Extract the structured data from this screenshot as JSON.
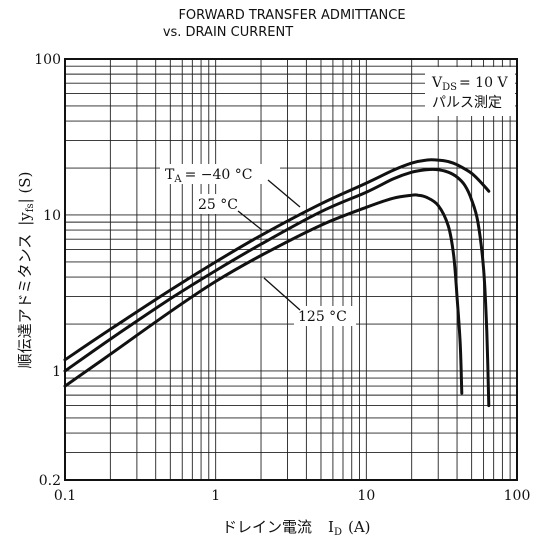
{
  "chart_data": {
    "type": "line",
    "title": "FORWARD TRANSFER ADMITTANCE",
    "subtitle": "vs. DRAIN CURRENT",
    "xlabel": "ドレイン電流　Iᴅ (A)",
    "xlabel_main": "ドレイン電流",
    "xlabel_symbol": "I",
    "xlabel_sub": "D",
    "xlabel_unit": "(A)",
    "ylabel": "順伝達アドミタンス |y_fs| (S)",
    "ylabel_main": "順伝達アドミタンス",
    "ylabel_symbol_left": "|y",
    "ylabel_sub": "fs",
    "ylabel_symbol_right": "| (S)",
    "x_scale": "log",
    "y_scale": "log",
    "xlim": [
      0.1,
      100
    ],
    "ylim": [
      0.2,
      100
    ],
    "x_ticks": [
      "0.1",
      "1",
      "10",
      "100"
    ],
    "y_ticks": [
      "0.2",
      "1",
      "10",
      "100"
    ],
    "grid": true,
    "conditions": {
      "line1_main": "V",
      "line1_sub": "DS",
      "line1_value": "= 10 V",
      "line2": "パルス測定"
    },
    "series": [
      {
        "name": "TA = −40 °C",
        "label_main": "T",
        "label_sub": "A",
        "label_value": "= −40 °C",
        "points": [
          [
            0.1,
            1.18
          ],
          [
            0.2,
            1.85
          ],
          [
            0.5,
            3.3
          ],
          [
            1,
            5.0
          ],
          [
            2,
            7.4
          ],
          [
            5,
            11.8
          ],
          [
            10,
            16.0
          ],
          [
            15,
            19.3
          ],
          [
            20,
            21.5
          ],
          [
            25,
            22.5
          ],
          [
            30,
            22.5
          ],
          [
            35,
            22
          ],
          [
            40,
            21
          ],
          [
            50,
            18.5
          ],
          [
            60,
            15.5
          ],
          [
            65,
            14.2
          ]
        ]
      },
      {
        "name": "25 °C",
        "label_main": "25 °C",
        "points": [
          [
            0.1,
            1.0
          ],
          [
            0.2,
            1.6
          ],
          [
            0.5,
            2.9
          ],
          [
            1,
            4.4
          ],
          [
            2,
            6.5
          ],
          [
            5,
            10.5
          ],
          [
            10,
            14.0
          ],
          [
            15,
            17.0
          ],
          [
            20,
            18.8
          ],
          [
            25,
            19.5
          ],
          [
            30,
            19.5
          ],
          [
            35,
            18.8
          ],
          [
            40,
            17.5
          ],
          [
            45,
            15.5
          ],
          [
            50,
            12.5
          ],
          [
            55,
            9.0
          ],
          [
            60,
            4.5
          ],
          [
            63,
            1.8
          ],
          [
            65,
            0.6
          ]
        ]
      },
      {
        "name": "125 °C",
        "label_main": "125 °C",
        "points": [
          [
            0.1,
            0.8
          ],
          [
            0.2,
            1.28
          ],
          [
            0.5,
            2.4
          ],
          [
            1,
            3.75
          ],
          [
            2,
            5.5
          ],
          [
            5,
            8.6
          ],
          [
            10,
            11.2
          ],
          [
            15,
            12.8
          ],
          [
            20,
            13.4
          ],
          [
            22,
            13.4
          ],
          [
            25,
            13.0
          ],
          [
            30,
            11.5
          ],
          [
            35,
            8.5
          ],
          [
            38,
            5.5
          ],
          [
            40,
            3.0
          ],
          [
            42,
            1.5
          ],
          [
            43,
            0.72
          ]
        ]
      }
    ]
  }
}
